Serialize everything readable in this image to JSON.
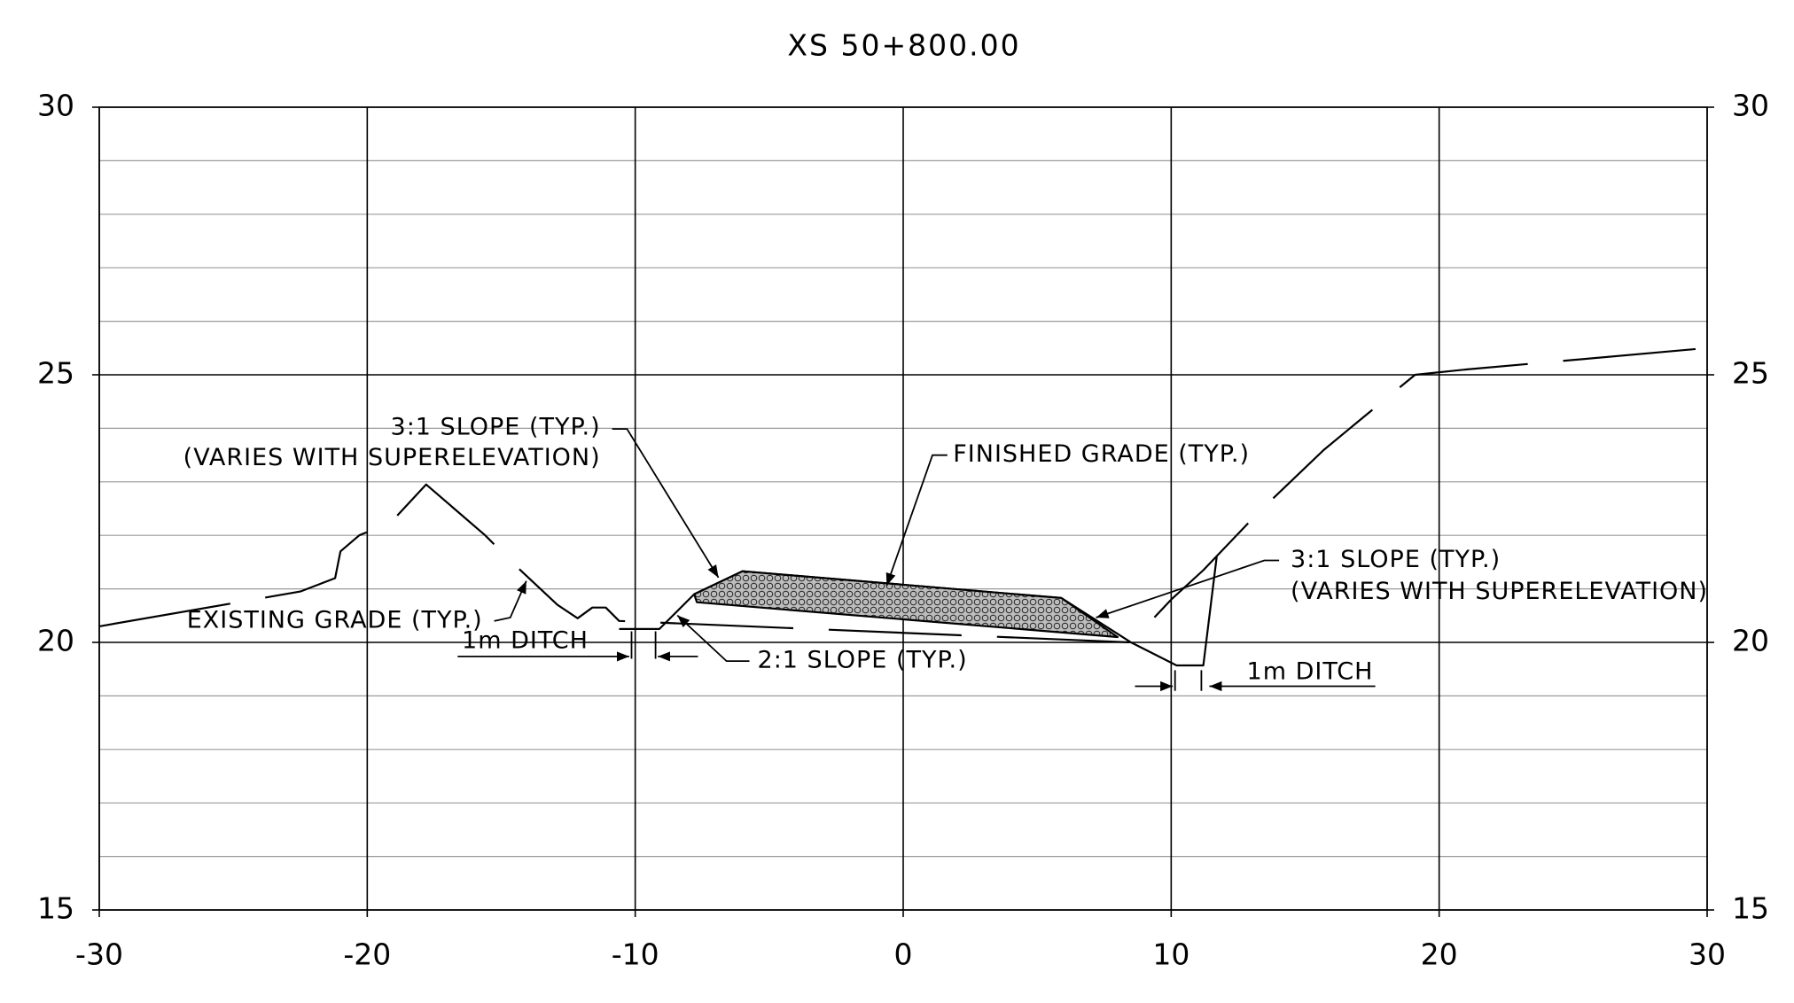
{
  "chart_data": {
    "type": "line",
    "title": "XS 50+800.00",
    "xlim": [
      -30,
      30
    ],
    "ylim": [
      15,
      30
    ],
    "xticks": [
      -30,
      -20,
      -10,
      0,
      10,
      20,
      30
    ],
    "yticks": [
      15,
      20,
      25,
      30
    ],
    "minor_yticks": [
      16,
      17,
      18,
      19,
      21,
      22,
      23,
      24,
      26,
      27,
      28,
      29
    ],
    "grid": true,
    "series": [
      {
        "color": "#000000",
        "dash": true,
        "x": [
          -30,
          -22.5,
          -21.2,
          -21,
          -20.3,
          -19.1,
          -17.8,
          -15.6,
          -14.5,
          -12.9,
          -12.15,
          -11.6,
          -11.1,
          -10.6,
          8.5,
          10,
          11.2,
          13.3,
          15.7,
          18,
          19.1,
          21,
          30
        ],
        "values": [
          20.3,
          20.95,
          21.2,
          21.7,
          22.0,
          22.25,
          22.95,
          22.0,
          21.45,
          20.7,
          20.45,
          20.65,
          20.65,
          20.4,
          20.0,
          20.8,
          21.35,
          22.45,
          23.6,
          24.55,
          25.0,
          25.1,
          25.5
        ]
      },
      {
        "color": "#000000",
        "dash": false,
        "x": [
          -10.6,
          -10,
          -9.1,
          -7.8,
          -6,
          5.9,
          8.5,
          10.2,
          11.2,
          11.7
        ],
        "values": [
          20.25,
          20.25,
          20.25,
          20.9,
          21.33,
          20.83,
          20.0,
          19.57,
          19.57,
          21.6
        ]
      },
      {
        "color": "#000000",
        "fill": "#8a8a8a",
        "closed": true,
        "x": [
          -7.8,
          -6,
          5.9,
          8.0,
          -7.7
        ],
        "values": [
          20.9,
          21.33,
          20.83,
          20.1,
          20.75
        ]
      }
    ],
    "annotations": [
      "3:1 SLOPE (TYP.)",
      "(VARIES WITH SUPERELEVATION)",
      "FINISHED GRADE (TYP.)",
      "EXISTING GRADE (TYP.)",
      "1m DITCH",
      "2:1 SLOPE (TYP.)",
      "3:1 SLOPE (TYP.)",
      "(VARIES WITH SUPERELEVATION)",
      "1m DITCH"
    ]
  }
}
